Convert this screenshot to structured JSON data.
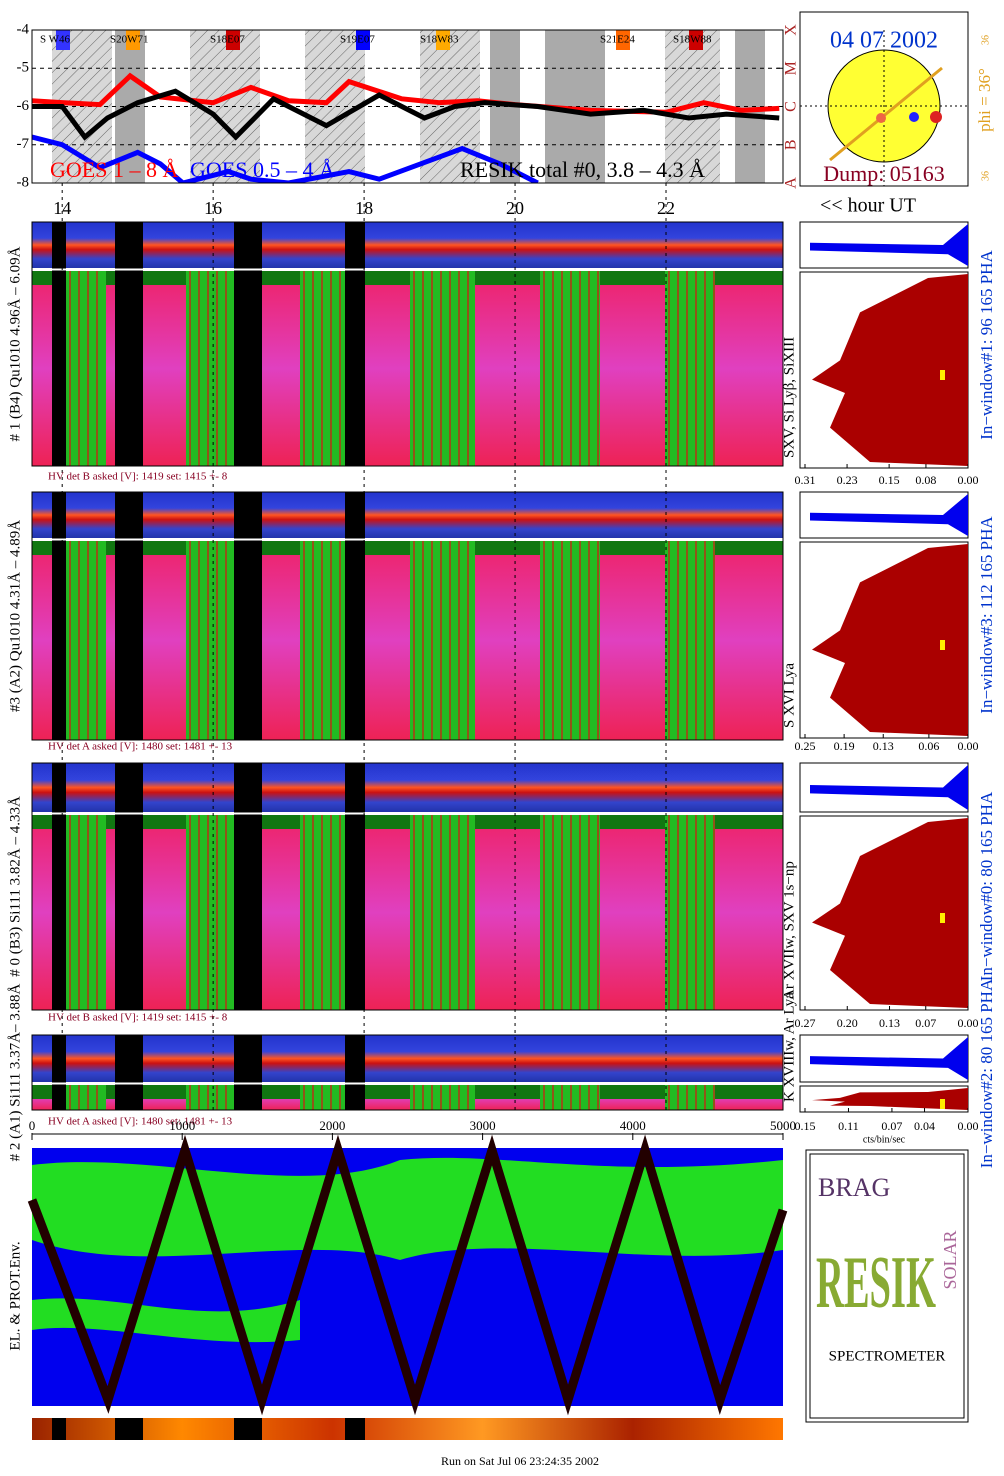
{
  "chart_data": {
    "type": "line",
    "series": [
      {
        "name": "GOES 1 – 8 Å",
        "color": "#ff0000",
        "x": [
          13.6,
          14,
          14.5,
          14.9,
          15.3,
          16,
          16.5,
          17,
          17.5,
          17.8,
          18.5,
          19,
          19.5,
          20,
          21,
          22,
          22.5,
          23,
          23.5
        ],
        "values": [
          -5.85,
          -5.9,
          -5.95,
          -5.2,
          -5.75,
          -5.9,
          -5.5,
          -5.85,
          -5.9,
          -5.35,
          -5.8,
          -5.9,
          -5.85,
          -5.95,
          -6.1,
          -6.15,
          -5.9,
          -6.1,
          -6.05
        ]
      },
      {
        "name": "GOES 0.5 – 4 Å",
        "color": "#0000ff",
        "x": [
          13.6,
          14,
          14.5,
          15,
          15.3,
          15.6,
          16.2,
          16.5,
          17,
          17.8,
          18.2,
          19.3,
          19.8,
          20.3
        ],
        "values": [
          -6.8,
          -7.0,
          -7.6,
          -7.2,
          -7.5,
          -8.0,
          -7.7,
          -7.9,
          -8.0,
          -7.7,
          -7.9,
          -7.1,
          -7.5,
          -8.0
        ]
      },
      {
        "name": "RESIK total #0, 3.8 – 4.3 Å",
        "color": "#000000",
        "x": [
          13.6,
          14,
          14.3,
          14.6,
          15,
          15.5,
          16,
          16.3,
          16.8,
          17.5,
          18.2,
          18.8,
          19.2,
          19.6,
          20.3,
          21,
          21.7,
          22.3,
          22.8,
          23.5
        ],
        "values": [
          -6.0,
          -6.0,
          -6.8,
          -6.3,
          -5.9,
          -5.6,
          -6.2,
          -6.8,
          -5.8,
          -6.5,
          -5.7,
          -6.3,
          -6.0,
          -5.9,
          -6.0,
          -6.2,
          -6.1,
          -6.3,
          -6.2,
          -6.3
        ]
      }
    ],
    "xlim": [
      13.6,
      23.55
    ],
    "xticks": [
      14,
      16,
      18,
      20,
      22
    ],
    "ylim": [
      -8,
      -4
    ],
    "yticks": [
      -8,
      -7,
      -6,
      -5,
      -4
    ],
    "y2lim": [
      -8,
      -4
    ],
    "y2ticks": [
      {
        "value": -8,
        "label": "A"
      },
      {
        "value": -7,
        "label": "B"
      },
      {
        "value": -6,
        "label": "C"
      },
      {
        "value": -5,
        "label": "M"
      },
      {
        "value": -4,
        "label": "X"
      }
    ],
    "grid": true,
    "region_labels": [
      {
        "label": "S W46",
        "color": "#3333ff"
      },
      {
        "label": "S20W71",
        "color": "#ff9900"
      },
      {
        "label": "S18E07",
        "color": "#cc0000"
      },
      {
        "label": "S19E07",
        "color": "#0000ff"
      },
      {
        "label": "S18W83",
        "color": "#ffaa00"
      },
      {
        "label": "S21E24",
        "color": "#ff6600"
      },
      {
        "label": "S18W88",
        "color": "#cc0000"
      }
    ],
    "x_note": "<< hour UT"
  },
  "solar_panel": {
    "date": "04 07 2002",
    "angle": "phi = 36°",
    "left_value": "36",
    "right_value": "36",
    "dump": "Dump: 05163"
  },
  "channels": [
    {
      "label": "# 1 (B4) Qu1010 4.96Å – 6.09Å",
      "hv": "HV det B asked [V]:  1419 set:  1415  +-   8",
      "lines": "SXV, Si Lyβ, SiXIII",
      "window": "In−window#1:   96 165  PHA",
      "hist_xlim": [
        0.31,
        0
      ],
      "hist_ticks": [
        0.31,
        0.23,
        0.15,
        0.08,
        {
          "value": 0,
          "label": "0.00"
        }
      ]
    },
    {
      "label": "#3 (A2) Qu1010  4.31Å – 4.89Å",
      "hv": "HV det A asked [V]:  1480 set:  1481  +-   13",
      "lines": "S XVI Lya",
      "window": "In−window#3:  112 165  PHA",
      "hist_xlim": [
        0.25,
        0
      ],
      "hist_ticks": [
        0.25,
        0.19,
        0.13,
        0.06,
        {
          "value": 0,
          "label": "0.00"
        }
      ]
    },
    {
      "label": "# 0 (B3) Si111  3.82Å – 4.33Å",
      "hv": "HV det B asked [V]:  1419 set:  1415  +-   8",
      "lines": "Ar XVIIw,  SXV 1s−np",
      "window": "In−window#0:   80 165  PHA",
      "hist_xlim": [
        0.27,
        0
      ],
      "hist_ticks": [
        0.27,
        {
          "value": 0.2,
          "label": "0.20"
        },
        0.13,
        0.07,
        {
          "value": 0,
          "label": "0.00"
        }
      ]
    },
    {
      "label": "# 2 (A1) Si111  3.37Å– 3.88Å",
      "hv": "HV det A asked [V]:  1480 set:  1481  +-   13",
      "lines": "K XVIIIw,  Ar Lya",
      "window": "In−window#2:   80 165  PHA",
      "hist_xlim": [
        0.15,
        0
      ],
      "hist_ticks": [
        0.15,
        0.11,
        0.07,
        0.04,
        {
          "value": 0,
          "label": "0.00"
        }
      ],
      "hist_xlabel": "cts/bin/sec"
    }
  ],
  "bottom_axis": {
    "xlim": [
      0,
      5000
    ],
    "xticks": [
      0,
      1000,
      2000,
      3000,
      4000,
      5000
    ],
    "label": "EL. & PROT.Env."
  },
  "logo": {
    "top": "BRAG",
    "main": "RESIK",
    "side": "SOLAR",
    "bottom": "SPECTROMETER"
  },
  "footer": "Run on Sat Jul 06 23:24:35 2002"
}
